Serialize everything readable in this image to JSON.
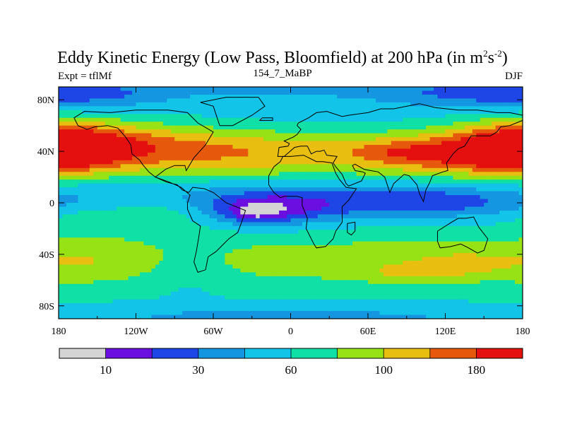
{
  "chart_data": {
    "type": "heatmap",
    "title": "Eddy Kinetic Energy (Low Pass, Bloomfield) at 200 hPa (in m",
    "title_units_sup1": "2",
    "title_units_mid": "s",
    "title_units_sup2": "-2",
    "title_close": ")",
    "left_label": "Expt = tflMf",
    "center_label": "154_7_MaBP",
    "right_label": "DJF",
    "x_axis": {
      "range": [
        -180,
        180
      ],
      "ticks": [
        -180,
        -120,
        -60,
        0,
        60,
        120,
        180
      ],
      "tick_labels": [
        "180",
        "120W",
        "60W",
        "0",
        "60E",
        "120E",
        "180"
      ]
    },
    "y_axis": {
      "range": [
        -90,
        90
      ],
      "ticks": [
        80,
        40,
        0,
        -40,
        -80
      ],
      "tick_labels": [
        "80N",
        "40N",
        "0",
        "40S",
        "80S"
      ]
    },
    "colorbar": {
      "colors": [
        "#d4d4d4",
        "#6a0fe0",
        "#1e46e6",
        "#1496e0",
        "#12c4e8",
        "#10e0a6",
        "#96e214",
        "#e8be10",
        "#e6580c",
        "#e41010"
      ],
      "labels": [
        "10",
        "30",
        "60",
        "100",
        "180"
      ]
    },
    "base_level": 5,
    "features": [
      {
        "lon": -160,
        "lat": 44,
        "sx": 60,
        "sy": 14,
        "a": 3.6
      },
      {
        "lon": 180,
        "lat": 42,
        "sx": 35,
        "sy": 13,
        "a": 3.4
      },
      {
        "lon": 45,
        "lat": 38,
        "sx": 90,
        "sy": 14,
        "a": 2.2
      },
      {
        "lon": 115,
        "lat": 35,
        "sx": 35,
        "sy": 10,
        "a": 1.2
      },
      {
        "lon": 80,
        "lat": 40,
        "sx": 25,
        "sy": 6,
        "a": 1.0
      },
      {
        "lon": -60,
        "lat": 40,
        "sx": 50,
        "sy": 14,
        "a": 1.4
      },
      {
        "lon": 0,
        "lat": 65,
        "sx": 180,
        "sy": 12,
        "a": -0.6
      },
      {
        "lon": -160,
        "lat": 84,
        "sx": 50,
        "sy": 8,
        "a": -1.5
      },
      {
        "lon": 140,
        "lat": 84,
        "sx": 60,
        "sy": 8,
        "a": -1.3
      },
      {
        "lon": 10,
        "lat": 88,
        "sx": 120,
        "sy": 5,
        "a": -1.0
      },
      {
        "lon": 0,
        "lat": 5,
        "sx": 180,
        "sy": 11,
        "a": -1.4
      },
      {
        "lon": -15,
        "lat": -5,
        "sx": 35,
        "sy": 9,
        "a": -2.7
      },
      {
        "lon": -28,
        "lat": -8,
        "sx": 14,
        "sy": 5,
        "a": -1.6
      },
      {
        "lon": 100,
        "lat": 0,
        "sx": 55,
        "sy": 8,
        "a": -1.9
      },
      {
        "lon": -110,
        "lat": -8,
        "sx": 30,
        "sy": 10,
        "a": 1.2
      },
      {
        "lon": -165,
        "lat": -12,
        "sx": 15,
        "sy": 6,
        "a": 0.6
      },
      {
        "lon": 60,
        "lat": -45,
        "sx": 120,
        "sy": 14,
        "a": 1.6
      },
      {
        "lon": -140,
        "lat": -45,
        "sx": 60,
        "sy": 14,
        "a": 1.3
      },
      {
        "lon": 95,
        "lat": -55,
        "sx": 25,
        "sy": 5,
        "a": 1.1
      },
      {
        "lon": 130,
        "lat": -48,
        "sx": 20,
        "sy": 5,
        "a": 1.0
      },
      {
        "lon": -80,
        "lat": -50,
        "sx": 25,
        "sy": 14,
        "a": -1.0
      },
      {
        "lon": 0,
        "lat": -88,
        "sx": 180,
        "sy": 6,
        "a": -1.2
      }
    ],
    "land_outlines": [
      [
        [
          -168,
          66
        ],
        [
          -160,
          71
        ],
        [
          -140,
          70
        ],
        [
          -120,
          72
        ],
        [
          -95,
          72
        ],
        [
          -80,
          70
        ],
        [
          -72,
          62
        ],
        [
          -60,
          55
        ],
        [
          -66,
          45
        ],
        [
          -75,
          35
        ],
        [
          -81,
          25
        ],
        [
          -82,
          29
        ],
        [
          -90,
          29
        ],
        [
          -97,
          26
        ],
        [
          -105,
          20
        ],
        [
          -96,
          16
        ],
        [
          -88,
          14
        ],
        [
          -84,
          10
        ],
        [
          -79,
          8
        ],
        [
          -76,
          12
        ],
        [
          -67,
          11
        ],
        [
          -60,
          8
        ],
        [
          -50,
          0
        ],
        [
          -35,
          -6
        ],
        [
          -38,
          -15
        ],
        [
          -41,
          -23
        ],
        [
          -48,
          -28
        ],
        [
          -54,
          -34
        ],
        [
          -58,
          -38
        ],
        [
          -64,
          -42
        ],
        [
          -66,
          -52
        ],
        [
          -72,
          -54
        ],
        [
          -75,
          -46
        ],
        [
          -73,
          -37
        ],
        [
          -71,
          -25
        ],
        [
          -70,
          -18
        ],
        [
          -76,
          -14
        ],
        [
          -80,
          -5
        ],
        [
          -80,
          0
        ],
        [
          -78,
          6
        ],
        [
          -85,
          12
        ],
        [
          -94,
          16
        ],
        [
          -105,
          20
        ],
        [
          -110,
          24
        ],
        [
          -115,
          30
        ],
        [
          -117,
          33
        ],
        [
          -123,
          38
        ],
        [
          -124,
          45
        ],
        [
          -128,
          51
        ],
        [
          -134,
          58
        ],
        [
          -142,
          60
        ],
        [
          -152,
          59
        ],
        [
          -158,
          57
        ],
        [
          -165,
          60
        ],
        [
          -168,
          66
        ]
      ],
      [
        [
          -10,
          36
        ],
        [
          -9,
          43
        ],
        [
          -2,
          44
        ],
        [
          -1,
          46
        ],
        [
          -5,
          48
        ],
        [
          2,
          51
        ],
        [
          5,
          53
        ],
        [
          8,
          57
        ],
        [
          5,
          60
        ],
        [
          6,
          62
        ],
        [
          14,
          66
        ],
        [
          20,
          70
        ],
        [
          28,
          71
        ],
        [
          40,
          67
        ],
        [
          45,
          68
        ],
        [
          60,
          70
        ],
        [
          70,
          73
        ],
        [
          80,
          73
        ],
        [
          100,
          77
        ],
        [
          112,
          74
        ],
        [
          130,
          72
        ],
        [
          145,
          72
        ],
        [
          160,
          70
        ],
        [
          170,
          70
        ],
        [
          180,
          68
        ],
        [
          180,
          64
        ],
        [
          170,
          60
        ],
        [
          163,
          59
        ],
        [
          160,
          55
        ],
        [
          155,
          52
        ],
        [
          140,
          52
        ],
        [
          135,
          44
        ],
        [
          130,
          42
        ],
        [
          126,
          38
        ],
        [
          121,
          31
        ],
        [
          122,
          25
        ],
        [
          118,
          24
        ],
        [
          110,
          21
        ],
        [
          108,
          16
        ],
        [
          105,
          10
        ],
        [
          103,
          1
        ],
        [
          100,
          7
        ],
        [
          98,
          14
        ],
        [
          92,
          21
        ],
        [
          88,
          22
        ],
        [
          80,
          15
        ],
        [
          77,
          8
        ],
        [
          73,
          20
        ],
        [
          68,
          24
        ],
        [
          62,
          25
        ],
        [
          57,
          26
        ],
        [
          50,
          30
        ],
        [
          48,
          29
        ],
        [
          50,
          25
        ],
        [
          56,
          24
        ],
        [
          58,
          23
        ],
        [
          55,
          17
        ],
        [
          45,
          13
        ],
        [
          43,
          15
        ],
        [
          40,
          22
        ],
        [
          35,
          28
        ],
        [
          33,
          31
        ],
        [
          36,
          36
        ],
        [
          28,
          37
        ],
        [
          26,
          41
        ],
        [
          23,
          40
        ],
        [
          20,
          40
        ],
        [
          16,
          38
        ],
        [
          13,
          44
        ],
        [
          8,
          44
        ],
        [
          3,
          43
        ],
        [
          -5,
          36
        ],
        [
          -10,
          36
        ]
      ],
      [
        [
          -17,
          21
        ],
        [
          -13,
          28
        ],
        [
          -8,
          32
        ],
        [
          -6,
          36
        ],
        [
          0,
          36
        ],
        [
          10,
          37
        ],
        [
          20,
          32
        ],
        [
          25,
          32
        ],
        [
          32,
          31
        ],
        [
          35,
          23
        ],
        [
          38,
          18
        ],
        [
          43,
          12
        ],
        [
          51,
          11
        ],
        [
          45,
          2
        ],
        [
          40,
          -3
        ],
        [
          40,
          -10
        ],
        [
          40,
          -15
        ],
        [
          35,
          -22
        ],
        [
          33,
          -28
        ],
        [
          27,
          -34
        ],
        [
          20,
          -35
        ],
        [
          18,
          -32
        ],
        [
          12,
          -20
        ],
        [
          13,
          -12
        ],
        [
          9,
          -2
        ],
        [
          9,
          4
        ],
        [
          5,
          5
        ],
        [
          -5,
          5
        ],
        [
          -8,
          4
        ],
        [
          -13,
          8
        ],
        [
          -17,
          14
        ],
        [
          -17,
          21
        ]
      ],
      [
        [
          114,
          -22
        ],
        [
          114,
          -30
        ],
        [
          116,
          -35
        ],
        [
          124,
          -34
        ],
        [
          132,
          -32
        ],
        [
          138,
          -35
        ],
        [
          145,
          -39
        ],
        [
          150,
          -37
        ],
        [
          153,
          -28
        ],
        [
          146,
          -19
        ],
        [
          142,
          -11
        ],
        [
          136,
          -12
        ],
        [
          130,
          -12
        ],
        [
          125,
          -15
        ],
        [
          114,
          -22
        ]
      ],
      [
        [
          -55,
          60
        ],
        [
          -45,
          60
        ],
        [
          -30,
          68
        ],
        [
          -20,
          75
        ],
        [
          -25,
          82
        ],
        [
          -50,
          82
        ],
        [
          -70,
          78
        ],
        [
          -60,
          75
        ],
        [
          -55,
          60
        ]
      ],
      [
        [
          44,
          -16
        ],
        [
          50,
          -15
        ],
        [
          50,
          -22
        ],
        [
          47,
          -25
        ],
        [
          44,
          -23
        ],
        [
          44,
          -16
        ]
      ],
      [
        [
          -24,
          64
        ],
        [
          -14,
          64
        ],
        [
          -14,
          66
        ],
        [
          -22,
          66
        ],
        [
          -24,
          64
        ]
      ]
    ]
  }
}
